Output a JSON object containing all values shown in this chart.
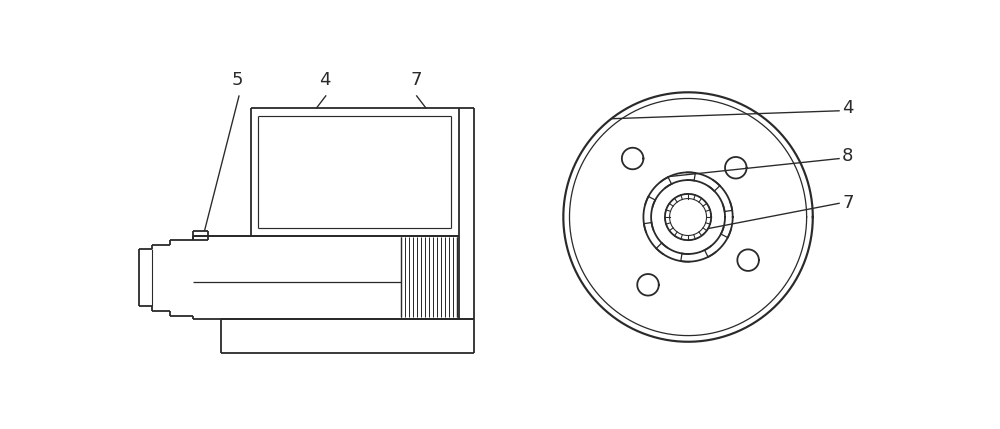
{
  "bg_color": "#ffffff",
  "line_color": "#2a2a2a",
  "line_width": 1.3,
  "label_fontsize": 13
}
